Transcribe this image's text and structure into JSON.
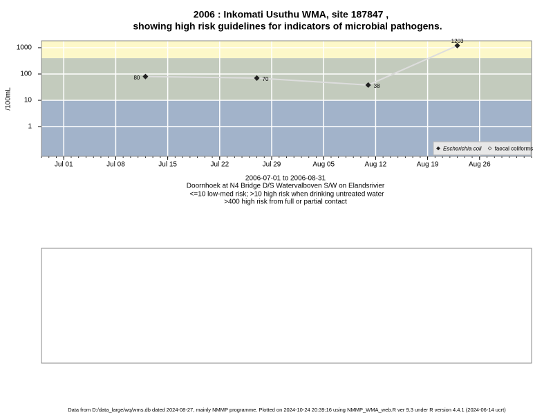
{
  "chart_data": {
    "type": "line",
    "title_lines": [
      "2006 : Inkomati Usuthu WMA, site 187847 ,",
      "showing high risk guidelines for indicators of microbial pathogens."
    ],
    "y_label": "/100mL",
    "subtitle_lines": [
      "2006-07-01 to 2006-08-31",
      "Doornhoek at N4 Bridge D/S Watervalboven S/W on Elandsrivier",
      "<=10 low-med risk; >10 high risk when drinking untreated water",
      ">400 high risk from full or partial contact"
    ],
    "footer": "Data from D:/data_large/wq/wms.db dated 2024-08-27, mainly NMMP programme. Plotted on 2024-10-24 20:39:16 using NMMP_WMA_web.R ver 9.3 under R version 4.4.1 (2024-06-14 ucrt)",
    "x": [
      "2006-07-12",
      "2006-07-27",
      "2006-08-11",
      "2006-08-23"
    ],
    "series": [
      {
        "name": "Escherichia coli",
        "color": "#222222",
        "line_color": "#dddddd",
        "marker": "filled-diamond",
        "values": [
          80,
          70,
          38,
          1203
        ]
      },
      {
        "name": "faecal coliforms",
        "color": "#222222",
        "marker": "open-diamond",
        "values": [
          null,
          null,
          null,
          null
        ]
      }
    ],
    "log_scale": true,
    "ylim": [
      0.074,
      1830
    ],
    "yticks": [
      1,
      10,
      100,
      1000
    ],
    "xlim": [
      "2006-06-28",
      "2006-09-02"
    ],
    "xticks": [
      {
        "value": "2006-07-01",
        "label": "Jul 01"
      },
      {
        "value": "2006-07-08",
        "label": "Jul 08"
      },
      {
        "value": "2006-07-15",
        "label": "Jul 15"
      },
      {
        "value": "2006-07-22",
        "label": "Jul 22"
      },
      {
        "value": "2006-07-29",
        "label": "Jul 29"
      },
      {
        "value": "2006-08-05",
        "label": "Aug 05"
      },
      {
        "value": "2006-08-12",
        "label": "Aug 12"
      },
      {
        "value": "2006-08-19",
        "label": "Aug 19"
      },
      {
        "value": "2006-08-26",
        "label": "Aug 26"
      }
    ],
    "bands": [
      {
        "lower": 400,
        "color": "#fdf8c9"
      },
      {
        "lower": 10,
        "upper": 400,
        "color": "#c3cbbd"
      },
      {
        "upper": 10,
        "color": "#a2b3ca"
      }
    ],
    "grid": true,
    "grid_color": "#ffffff",
    "legend": "bottom-right"
  }
}
